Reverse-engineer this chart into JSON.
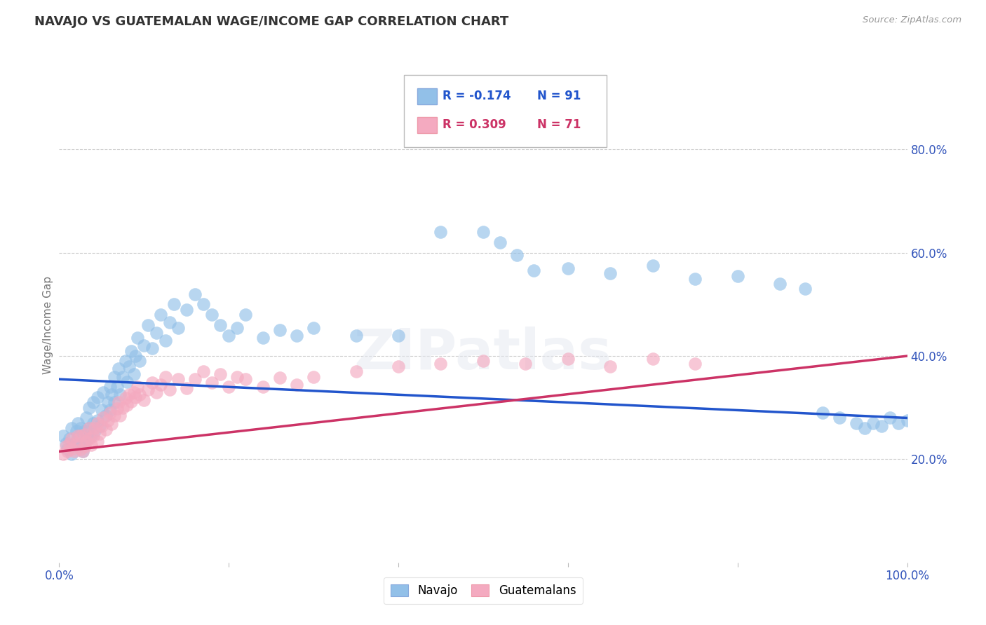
{
  "title": "NAVAJO VS GUATEMALAN WAGE/INCOME GAP CORRELATION CHART",
  "source": "Source: ZipAtlas.com",
  "ylabel": "Wage/Income Gap",
  "navajo_R": -0.174,
  "navajo_N": 91,
  "guatemalan_R": 0.309,
  "guatemalan_N": 71,
  "navajo_color": "#92c0e8",
  "navajo_line_color": "#2255cc",
  "guatemalan_color": "#f4aac0",
  "guatemalan_line_color": "#cc3366",
  "background_color": "#ffffff",
  "grid_color": "#cccccc",
  "title_color": "#333333",
  "source_color": "#999999",
  "axis_label_color": "#3355bb",
  "ytick_positions": [
    0.2,
    0.4,
    0.6,
    0.8
  ],
  "ytick_labels": [
    "20.0%",
    "40.0%",
    "60.0%",
    "80.0%"
  ],
  "navajo_x": [
    0.005,
    0.008,
    0.01,
    0.012,
    0.015,
    0.015,
    0.018,
    0.02,
    0.022,
    0.022,
    0.025,
    0.025,
    0.028,
    0.03,
    0.03,
    0.032,
    0.033,
    0.035,
    0.035,
    0.038,
    0.04,
    0.04,
    0.042,
    0.045,
    0.045,
    0.048,
    0.05,
    0.052,
    0.055,
    0.058,
    0.06,
    0.06,
    0.062,
    0.065,
    0.065,
    0.068,
    0.07,
    0.072,
    0.075,
    0.078,
    0.08,
    0.082,
    0.085,
    0.088,
    0.09,
    0.092,
    0.095,
    0.1,
    0.105,
    0.11,
    0.115,
    0.12,
    0.125,
    0.13,
    0.135,
    0.14,
    0.15,
    0.16,
    0.17,
    0.18,
    0.19,
    0.2,
    0.21,
    0.22,
    0.24,
    0.26,
    0.28,
    0.3,
    0.35,
    0.4,
    0.45,
    0.5,
    0.52,
    0.54,
    0.56,
    0.6,
    0.65,
    0.7,
    0.75,
    0.8,
    0.85,
    0.88,
    0.9,
    0.92,
    0.94,
    0.95,
    0.96,
    0.97,
    0.98,
    0.99,
    1.0
  ],
  "navajo_y": [
    0.245,
    0.23,
    0.22,
    0.24,
    0.26,
    0.21,
    0.23,
    0.255,
    0.24,
    0.27,
    0.225,
    0.26,
    0.215,
    0.235,
    0.255,
    0.28,
    0.24,
    0.26,
    0.3,
    0.245,
    0.27,
    0.31,
    0.255,
    0.275,
    0.32,
    0.265,
    0.295,
    0.33,
    0.285,
    0.31,
    0.34,
    0.295,
    0.325,
    0.36,
    0.31,
    0.34,
    0.375,
    0.325,
    0.36,
    0.39,
    0.35,
    0.38,
    0.41,
    0.365,
    0.4,
    0.435,
    0.39,
    0.42,
    0.46,
    0.415,
    0.445,
    0.48,
    0.43,
    0.465,
    0.5,
    0.455,
    0.49,
    0.52,
    0.5,
    0.48,
    0.46,
    0.44,
    0.455,
    0.48,
    0.435,
    0.45,
    0.44,
    0.455,
    0.44,
    0.44,
    0.64,
    0.64,
    0.62,
    0.595,
    0.565,
    0.57,
    0.56,
    0.575,
    0.55,
    0.555,
    0.54,
    0.53,
    0.29,
    0.28,
    0.27,
    0.26,
    0.27,
    0.265,
    0.28,
    0.27,
    0.275
  ],
  "guatemalan_x": [
    0.005,
    0.008,
    0.01,
    0.012,
    0.015,
    0.015,
    0.018,
    0.02,
    0.022,
    0.025,
    0.025,
    0.028,
    0.03,
    0.03,
    0.032,
    0.035,
    0.035,
    0.038,
    0.04,
    0.042,
    0.045,
    0.045,
    0.048,
    0.05,
    0.052,
    0.055,
    0.058,
    0.06,
    0.062,
    0.065,
    0.068,
    0.07,
    0.072,
    0.075,
    0.078,
    0.08,
    0.082,
    0.085,
    0.088,
    0.09,
    0.092,
    0.095,
    0.1,
    0.105,
    0.11,
    0.115,
    0.12,
    0.125,
    0.13,
    0.14,
    0.15,
    0.16,
    0.17,
    0.18,
    0.19,
    0.2,
    0.21,
    0.22,
    0.24,
    0.26,
    0.28,
    0.3,
    0.35,
    0.4,
    0.45,
    0.5,
    0.55,
    0.6,
    0.65,
    0.7,
    0.75
  ],
  "guatemalan_y": [
    0.21,
    0.225,
    0.215,
    0.23,
    0.22,
    0.24,
    0.215,
    0.23,
    0.245,
    0.22,
    0.245,
    0.215,
    0.225,
    0.248,
    0.235,
    0.24,
    0.26,
    0.228,
    0.245,
    0.26,
    0.235,
    0.27,
    0.25,
    0.265,
    0.28,
    0.258,
    0.275,
    0.29,
    0.268,
    0.285,
    0.298,
    0.31,
    0.285,
    0.3,
    0.318,
    0.305,
    0.325,
    0.312,
    0.33,
    0.32,
    0.34,
    0.325,
    0.315,
    0.335,
    0.348,
    0.33,
    0.345,
    0.36,
    0.335,
    0.355,
    0.338,
    0.355,
    0.37,
    0.348,
    0.365,
    0.34,
    0.36,
    0.355,
    0.34,
    0.358,
    0.345,
    0.36,
    0.37,
    0.38,
    0.385,
    0.39,
    0.385,
    0.395,
    0.38,
    0.395,
    0.385
  ]
}
